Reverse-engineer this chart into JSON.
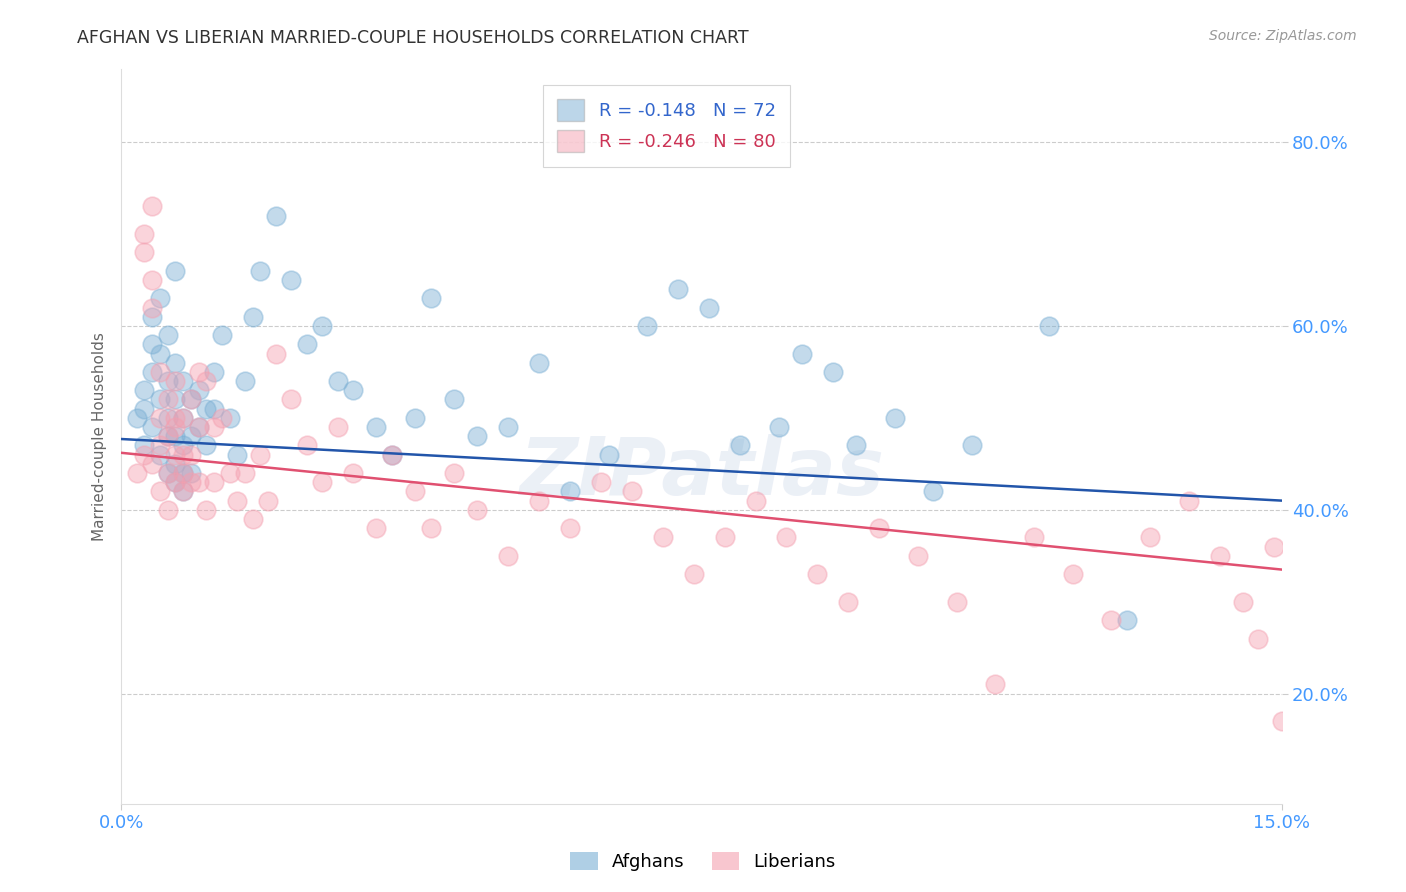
{
  "title": "AFGHAN VS LIBERIAN MARRIED-COUPLE HOUSEHOLDS CORRELATION CHART",
  "source": "Source: ZipAtlas.com",
  "ylabel": "Married-couple Households",
  "xlabel": "",
  "afghans_R": -0.148,
  "afghans_N": 72,
  "liberians_R": -0.246,
  "liberians_N": 80,
  "xlim": [
    0.0,
    0.15
  ],
  "ylim": [
    0.08,
    0.88
  ],
  "yticks": [
    0.2,
    0.4,
    0.6,
    0.8
  ],
  "ytick_labels": [
    "20.0%",
    "40.0%",
    "60.0%",
    "80.0%"
  ],
  "xticks": [
    0.0,
    0.15
  ],
  "xtick_labels": [
    "0.0%",
    "15.0%"
  ],
  "grid_color": "#cccccc",
  "background_color": "#ffffff",
  "afghan_color": "#7bafd4",
  "liberian_color": "#f4a0b0",
  "afghan_line_color": "#2255aa",
  "liberian_line_color": "#e05070",
  "tick_label_color": "#4499ff",
  "title_color": "#333333",
  "watermark": "ZIPatlas",
  "afghans_x": [
    0.002,
    0.003,
    0.003,
    0.003,
    0.004,
    0.004,
    0.004,
    0.004,
    0.005,
    0.005,
    0.005,
    0.005,
    0.006,
    0.006,
    0.006,
    0.006,
    0.006,
    0.007,
    0.007,
    0.007,
    0.007,
    0.007,
    0.007,
    0.008,
    0.008,
    0.008,
    0.008,
    0.008,
    0.009,
    0.009,
    0.009,
    0.01,
    0.01,
    0.011,
    0.011,
    0.012,
    0.012,
    0.013,
    0.014,
    0.015,
    0.016,
    0.017,
    0.018,
    0.02,
    0.022,
    0.024,
    0.026,
    0.028,
    0.03,
    0.033,
    0.035,
    0.038,
    0.04,
    0.043,
    0.046,
    0.05,
    0.054,
    0.058,
    0.063,
    0.068,
    0.072,
    0.076,
    0.08,
    0.085,
    0.088,
    0.092,
    0.095,
    0.1,
    0.105,
    0.11,
    0.12,
    0.13
  ],
  "afghans_y": [
    0.5,
    0.51,
    0.53,
    0.47,
    0.58,
    0.61,
    0.55,
    0.49,
    0.63,
    0.57,
    0.52,
    0.46,
    0.59,
    0.54,
    0.5,
    0.48,
    0.44,
    0.56,
    0.52,
    0.48,
    0.45,
    0.43,
    0.66,
    0.54,
    0.5,
    0.47,
    0.44,
    0.42,
    0.52,
    0.48,
    0.44,
    0.53,
    0.49,
    0.51,
    0.47,
    0.55,
    0.51,
    0.59,
    0.5,
    0.46,
    0.54,
    0.61,
    0.66,
    0.72,
    0.65,
    0.58,
    0.6,
    0.54,
    0.53,
    0.49,
    0.46,
    0.5,
    0.63,
    0.52,
    0.48,
    0.49,
    0.56,
    0.42,
    0.46,
    0.6,
    0.64,
    0.62,
    0.47,
    0.49,
    0.57,
    0.55,
    0.47,
    0.5,
    0.42,
    0.47,
    0.6,
    0.28
  ],
  "liberians_x": [
    0.002,
    0.003,
    0.003,
    0.003,
    0.004,
    0.004,
    0.004,
    0.004,
    0.005,
    0.005,
    0.005,
    0.005,
    0.006,
    0.006,
    0.006,
    0.006,
    0.007,
    0.007,
    0.007,
    0.007,
    0.007,
    0.008,
    0.008,
    0.008,
    0.008,
    0.009,
    0.009,
    0.009,
    0.01,
    0.01,
    0.01,
    0.011,
    0.011,
    0.012,
    0.012,
    0.013,
    0.014,
    0.015,
    0.016,
    0.017,
    0.018,
    0.019,
    0.02,
    0.022,
    0.024,
    0.026,
    0.028,
    0.03,
    0.033,
    0.035,
    0.038,
    0.04,
    0.043,
    0.046,
    0.05,
    0.054,
    0.058,
    0.062,
    0.066,
    0.07,
    0.074,
    0.078,
    0.082,
    0.086,
    0.09,
    0.094,
    0.098,
    0.103,
    0.108,
    0.113,
    0.118,
    0.123,
    0.128,
    0.133,
    0.138,
    0.142,
    0.145,
    0.147,
    0.149,
    0.15
  ],
  "liberians_y": [
    0.44,
    0.7,
    0.68,
    0.46,
    0.73,
    0.65,
    0.62,
    0.45,
    0.5,
    0.55,
    0.47,
    0.42,
    0.52,
    0.48,
    0.44,
    0.4,
    0.5,
    0.54,
    0.46,
    0.43,
    0.49,
    0.44,
    0.5,
    0.46,
    0.42,
    0.52,
    0.46,
    0.43,
    0.49,
    0.55,
    0.43,
    0.4,
    0.54,
    0.49,
    0.43,
    0.5,
    0.44,
    0.41,
    0.44,
    0.39,
    0.46,
    0.41,
    0.57,
    0.52,
    0.47,
    0.43,
    0.49,
    0.44,
    0.38,
    0.46,
    0.42,
    0.38,
    0.44,
    0.4,
    0.35,
    0.41,
    0.38,
    0.43,
    0.42,
    0.37,
    0.33,
    0.37,
    0.41,
    0.37,
    0.33,
    0.3,
    0.38,
    0.35,
    0.3,
    0.21,
    0.37,
    0.33,
    0.28,
    0.37,
    0.41,
    0.35,
    0.3,
    0.26,
    0.36,
    0.17
  ]
}
